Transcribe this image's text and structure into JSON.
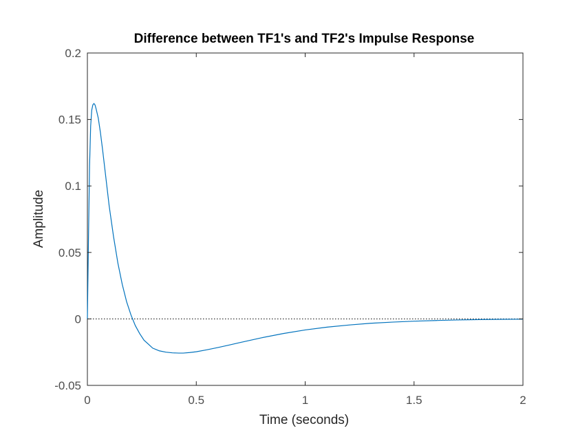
{
  "chart_data": {
    "type": "line",
    "title": "Difference between TF1's and TF2's Impulse Response",
    "xlabel": "Time (seconds)",
    "ylabel": "Amplitude",
    "xlim": [
      0,
      2
    ],
    "ylim": [
      -0.05,
      0.2
    ],
    "x_ticks": [
      0,
      0.5,
      1,
      1.5,
      2
    ],
    "x_tick_labels": [
      "0",
      "0.5",
      "1",
      "1.5",
      "2"
    ],
    "y_ticks": [
      -0.05,
      0,
      0.05,
      0.1,
      0.15,
      0.2
    ],
    "y_tick_labels": [
      "-0.05",
      "0",
      "0.05",
      "0.1",
      "0.15",
      "0.2"
    ],
    "grid": false,
    "reference_line": {
      "y": 0,
      "style": "dotted",
      "color": "#000000"
    },
    "series": [
      {
        "color": "#0072BD",
        "x": [
          0,
          0.005,
          0.01,
          0.015,
          0.02,
          0.025,
          0.03,
          0.035,
          0.04,
          0.05,
          0.06,
          0.07,
          0.08,
          0.09,
          0.1,
          0.12,
          0.14,
          0.16,
          0.18,
          0.2,
          0.22,
          0.24,
          0.26,
          0.28,
          0.3,
          0.33,
          0.36,
          0.39,
          0.42,
          0.44,
          0.47,
          0.5,
          0.55,
          0.6,
          0.65,
          0.7,
          0.8,
          0.9,
          1.0,
          1.1,
          1.2,
          1.3,
          1.4,
          1.5,
          1.6,
          1.7,
          1.8,
          1.9,
          2.0
        ],
        "y": [
          0,
          0.06,
          0.115,
          0.145,
          0.157,
          0.161,
          0.162,
          0.161,
          0.158,
          0.151,
          0.14,
          0.127,
          0.113,
          0.099,
          0.085,
          0.062,
          0.042,
          0.026,
          0.013,
          0.003,
          -0.005,
          -0.011,
          -0.016,
          -0.019,
          -0.022,
          -0.024,
          -0.025,
          -0.0255,
          -0.0257,
          -0.0257,
          -0.0253,
          -0.0247,
          -0.0232,
          -0.0215,
          -0.0197,
          -0.0178,
          -0.0142,
          -0.011,
          -0.0083,
          -0.0062,
          -0.0046,
          -0.0033,
          -0.0024,
          -0.0017,
          -0.0012,
          -0.0008,
          -0.0005,
          -0.0003,
          -0.0002
        ]
      }
    ]
  }
}
